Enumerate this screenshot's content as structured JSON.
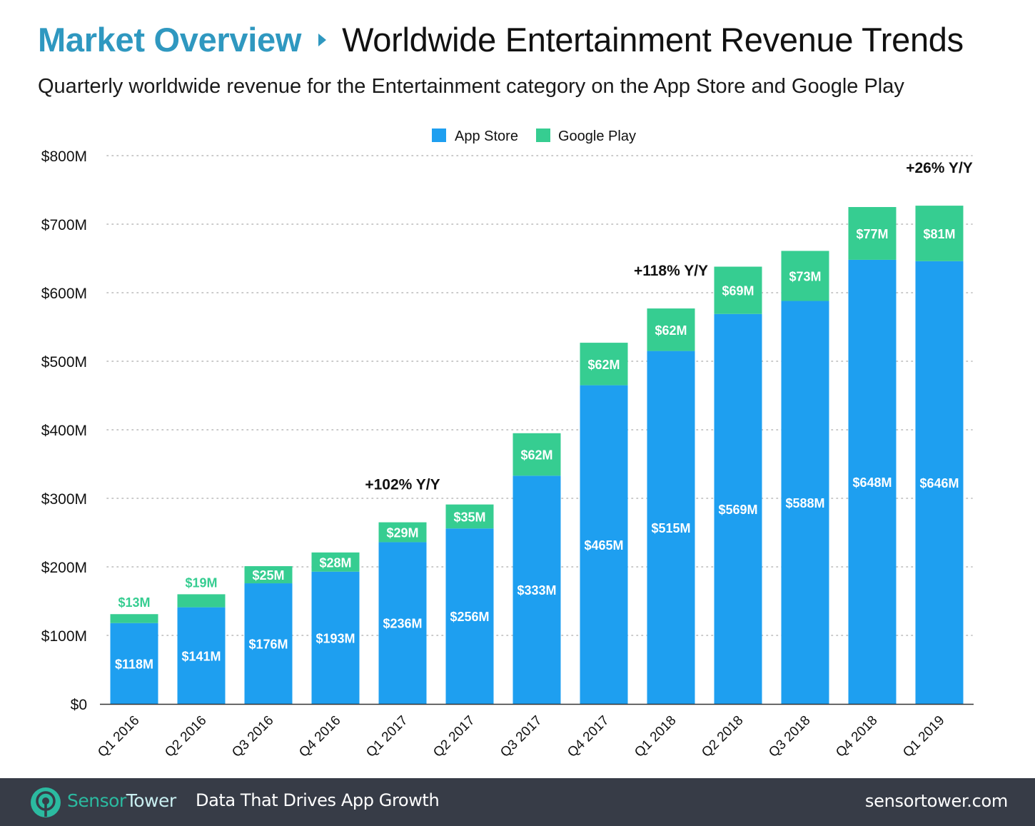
{
  "header": {
    "breadcrumb": "Market Overview",
    "title": "Worldwide Entertainment Revenue Trends",
    "subtitle": "Quarterly worldwide revenue for the Entertainment category on the App Store and Google Play"
  },
  "footer": {
    "brand_part1": "Sensor",
    "brand_part2": "Tower",
    "tagline": "Data That Drives App Growth",
    "site": "sensortower.com",
    "logo_icon": "sensortower-logo-icon"
  },
  "chart_data": {
    "type": "bar",
    "stacked": true,
    "title": "Worldwide Entertainment Revenue Trends",
    "subtitle": "Quarterly worldwide revenue for the Entertainment category on the App Store and Google Play",
    "xlabel": "",
    "ylabel": "",
    "ylim": [
      0,
      800
    ],
    "yunit": "$M",
    "yticks": [
      0,
      100,
      200,
      300,
      400,
      500,
      600,
      700,
      800
    ],
    "ytick_labels": [
      "$0",
      "$100M",
      "$200M",
      "$300M",
      "$400M",
      "$500M",
      "$600M",
      "$700M",
      "$800M"
    ],
    "grid": "horizontal-dotted",
    "legend_position": "top-center",
    "categories": [
      "Q1 2016",
      "Q2 2016",
      "Q3 2016",
      "Q4 2016",
      "Q1 2017",
      "Q2 2017",
      "Q3 2017",
      "Q4 2017",
      "Q1 2018",
      "Q2 2018",
      "Q3 2018",
      "Q4 2018",
      "Q1 2019"
    ],
    "series": [
      {
        "name": "App Store",
        "color": "#1e9ff0",
        "values": [
          118,
          141,
          176,
          193,
          236,
          256,
          333,
          465,
          515,
          569,
          588,
          648,
          646
        ],
        "labels": [
          "$118M",
          "$141M",
          "$176M",
          "$193M",
          "$236M",
          "$256M",
          "$333M",
          "$465M",
          "$515M",
          "$569M",
          "$588M",
          "$648M",
          "$646M"
        ]
      },
      {
        "name": "Google Play",
        "color": "#36cd91",
        "values": [
          13,
          19,
          25,
          28,
          29,
          35,
          62,
          62,
          62,
          69,
          73,
          77,
          81
        ],
        "labels": [
          "$13M",
          "$19M",
          "$25M",
          "$28M",
          "$29M",
          "$35M",
          "$62M",
          "$62M",
          "$62M",
          "$69M",
          "$73M",
          "$77M",
          "$81M"
        ]
      }
    ],
    "annotations": [
      {
        "category": "Q1 2017",
        "text": "+102% Y/Y"
      },
      {
        "category": "Q1 2018",
        "text": "+118% Y/Y"
      },
      {
        "category": "Q1 2019",
        "text": "+26% Y/Y"
      }
    ]
  }
}
